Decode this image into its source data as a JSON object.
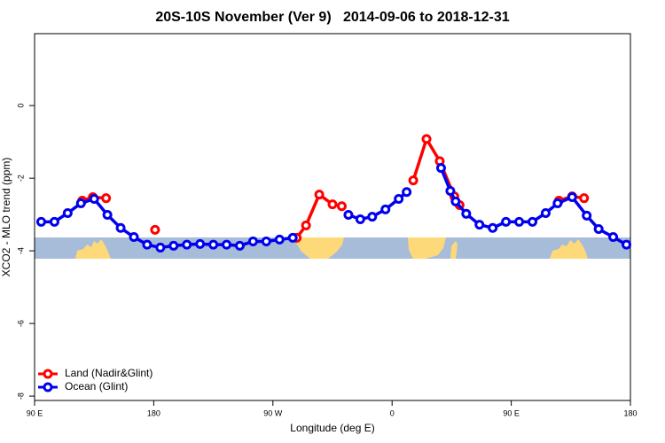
{
  "chart_data": {
    "type": "line",
    "title": "20S-10S November (Ver 9)   2014-09-06 to 2018-12-31",
    "x_label": "Longitude (deg E)",
    "y_label": "XCO2 - MLO trend (ppm)",
    "xlim": [
      90,
      540
    ],
    "xticks": [
      {
        "value": 90,
        "label": "90 E"
      },
      180,
      {
        "value": 270,
        "label": "90 W"
      },
      {
        "value": 360,
        "label": "0"
      },
      {
        "value": 450,
        "label": "90 E"
      },
      {
        "value": 540,
        "label": "180"
      }
    ],
    "ylim": [
      -8.12,
      1.98
    ],
    "yticks": [
      -8,
      -6,
      -4,
      -2,
      0
    ],
    "legend": "bottom-left",
    "series": [
      {
        "name": "Land (Nadir&Glint)",
        "color": "#ff0000",
        "x": [
          126,
          134,
          144,
          160,
          181,
          240,
          288,
          295,
          305,
          315,
          322,
          350,
          376,
          386,
          396,
          407,
          411,
          450,
          486,
          496,
          505
        ],
        "values": [
          -2.62,
          -2.52,
          -2.55,
          null,
          -3.42,
          null,
          -3.64,
          -3.3,
          -2.45,
          -2.72,
          -2.77,
          null,
          -2.06,
          -0.92,
          -1.53,
          -2.5,
          -2.74,
          null,
          -2.62,
          -2.5,
          -2.55
        ]
      },
      {
        "name": "Ocean (Glint)",
        "color": "#0000ee",
        "x": [
          95,
          105,
          115,
          125,
          135,
          145,
          155,
          165,
          175,
          185,
          195,
          205,
          215,
          225,
          235,
          245,
          255,
          265,
          275,
          285,
          305,
          327,
          336,
          345,
          355,
          365,
          371,
          385,
          397,
          404,
          408,
          416,
          426,
          436,
          446,
          456,
          466,
          476,
          485,
          496,
          507,
          516,
          527,
          537
        ],
        "values": [
          -3.2,
          -3.2,
          -2.96,
          -2.69,
          -2.57,
          -3.01,
          -3.37,
          -3.62,
          -3.83,
          -3.91,
          -3.86,
          -3.83,
          -3.81,
          -3.83,
          -3.83,
          -3.86,
          -3.74,
          -3.74,
          -3.69,
          -3.64,
          null,
          -3.01,
          -3.13,
          -3.06,
          -2.86,
          -2.57,
          -2.38,
          null,
          -1.72,
          -2.35,
          -2.64,
          -2.98,
          -3.28,
          -3.37,
          -3.2,
          -3.2,
          -3.2,
          -2.96,
          -2.69,
          -2.52,
          -3.03,
          -3.4,
          -3.62,
          -3.83
        ]
      }
    ]
  }
}
